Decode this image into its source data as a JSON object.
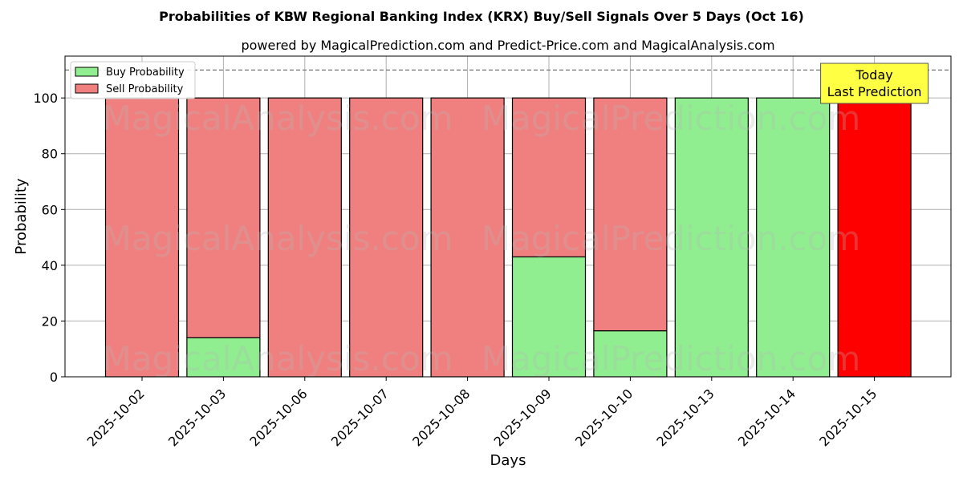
{
  "chart_data": {
    "type": "bar",
    "stacked": true,
    "title": "Probabilities of KBW Regional Banking Index (KRX) Buy/Sell Signals Over 5 Days (Oct 16)",
    "subtitle": "powered by MagicalPrediction.com and Predict-Price.com and MagicalAnalysis.com",
    "xlabel": "Days",
    "ylabel": "Probability",
    "ylim": [
      0,
      115
    ],
    "yticks": [
      0,
      20,
      40,
      60,
      80,
      100
    ],
    "grid": true,
    "legend_position": "top-left",
    "categories": [
      "2025-10-02",
      "2025-10-03",
      "2025-10-06",
      "2025-10-07",
      "2025-10-08",
      "2025-10-09",
      "2025-10-10",
      "2025-10-13",
      "2025-10-14",
      "2025-10-15"
    ],
    "series": [
      {
        "name": "Buy Probability",
        "color": "#90ee90",
        "values": [
          0,
          14,
          0,
          0,
          0,
          43,
          16.5,
          100,
          100,
          0
        ]
      },
      {
        "name": "Sell Probability",
        "color": "#f08080",
        "values": [
          100,
          86,
          100,
          100,
          100,
          57,
          83.5,
          0,
          0,
          100
        ]
      }
    ],
    "highlight": {
      "index": 9,
      "color": "#ff0000"
    },
    "reference_line": {
      "y": 110,
      "style": "dashed"
    },
    "annotation": {
      "lines": [
        "Today",
        "Last Prediction"
      ],
      "background": "#ffff44"
    },
    "watermarks": [
      "MagicalAnalysis.com",
      "MagicalPrediction.com"
    ]
  }
}
